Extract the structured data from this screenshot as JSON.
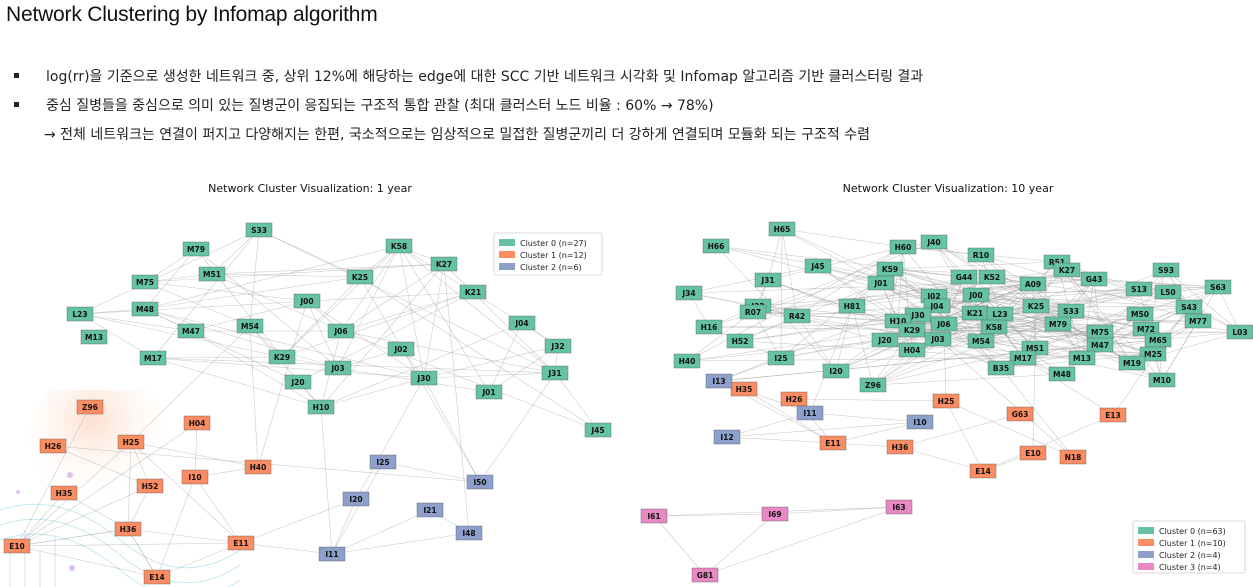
{
  "header": {
    "title": "Network Clustering by Infomap algorithm",
    "bullets": [
      "log(rr)을 기준으로 생성한 네트워크 중, 상위 12%에 해당하는 edge에 대한 SCC 기반 네트워크 시각화 및 Infomap 알고리즘 기반 클러스터링 결과",
      "중심 질병들을 중심으로 의미 있는 질병군이 응집되는 구조적 통합 관찰 (최대 클러스터 노드 비율 : 60% → 78%)"
    ],
    "conclusion": "→  전체 네트워크는 연결이 퍼지고 다양해지는 한편, 국소적으로는 임상적으로 밀접한 질병군끼리 더 강하게 연결되며 모듈화 되는 구조적 수렴"
  },
  "chart_data": [
    {
      "type": "network",
      "title": "Network Cluster Visualization: 1 year",
      "legend_position": "top-right",
      "clusters": [
        {
          "label": "Cluster 0 (n=27)",
          "color": "#66c2a5"
        },
        {
          "label": "Cluster 1 (n=12)",
          "color": "#fc8d62"
        },
        {
          "label": "Cluster 2 (n=6)",
          "color": "#8da0cb"
        }
      ],
      "nodes": [
        {
          "id": "S33",
          "c": 0
        },
        {
          "id": "M79",
          "c": 0
        },
        {
          "id": "K58",
          "c": 0
        },
        {
          "id": "M51",
          "c": 0
        },
        {
          "id": "K27",
          "c": 0
        },
        {
          "id": "M75",
          "c": 0
        },
        {
          "id": "K25",
          "c": 0
        },
        {
          "id": "K21",
          "c": 0
        },
        {
          "id": "M48",
          "c": 0
        },
        {
          "id": "J00",
          "c": 0
        },
        {
          "id": "L23",
          "c": 0
        },
        {
          "id": "J04",
          "c": 0
        },
        {
          "id": "M13",
          "c": 0
        },
        {
          "id": "M47",
          "c": 0
        },
        {
          "id": "M54",
          "c": 0
        },
        {
          "id": "J06",
          "c": 0
        },
        {
          "id": "J32",
          "c": 0
        },
        {
          "id": "M17",
          "c": 0
        },
        {
          "id": "K29",
          "c": 0
        },
        {
          "id": "J02",
          "c": 0
        },
        {
          "id": "J03",
          "c": 0
        },
        {
          "id": "J31",
          "c": 0
        },
        {
          "id": "J20",
          "c": 0
        },
        {
          "id": "J30",
          "c": 0
        },
        {
          "id": "J01",
          "c": 0
        },
        {
          "id": "H10",
          "c": 0
        },
        {
          "id": "J45",
          "c": 0
        },
        {
          "id": "Z96",
          "c": 1
        },
        {
          "id": "H04",
          "c": 1
        },
        {
          "id": "H26",
          "c": 1
        },
        {
          "id": "H25",
          "c": 1
        },
        {
          "id": "H40",
          "c": 1
        },
        {
          "id": "I10",
          "c": 1
        },
        {
          "id": "H52",
          "c": 1
        },
        {
          "id": "H35",
          "c": 1
        },
        {
          "id": "H36",
          "c": 1
        },
        {
          "id": "E11",
          "c": 1
        },
        {
          "id": "E10",
          "c": 1
        },
        {
          "id": "E14",
          "c": 1
        },
        {
          "id": "I25",
          "c": 2
        },
        {
          "id": "I50",
          "c": 2
        },
        {
          "id": "I20",
          "c": 2
        },
        {
          "id": "I21",
          "c": 2
        },
        {
          "id": "I48",
          "c": 2
        },
        {
          "id": "I11",
          "c": 2
        }
      ]
    },
    {
      "type": "network",
      "title": "Network Cluster Visualization: 10 year",
      "legend_position": "bottom-right",
      "clusters": [
        {
          "label": "Cluster 0 (n=63)",
          "color": "#66c2a5"
        },
        {
          "label": "Cluster 1 (n=10)",
          "color": "#fc8d62"
        },
        {
          "label": "Cluster 2 (n=4)",
          "color": "#8da0cb"
        },
        {
          "label": "Cluster 3 (n=4)",
          "color": "#e78ac3"
        }
      ],
      "nodes": [
        {
          "id": "H65",
          "c": 0
        },
        {
          "id": "H66",
          "c": 0
        },
        {
          "id": "J40",
          "c": 0
        },
        {
          "id": "H60",
          "c": 0
        },
        {
          "id": "R10",
          "c": 0
        },
        {
          "id": "J45",
          "c": 0
        },
        {
          "id": "K59",
          "c": 0
        },
        {
          "id": "R51",
          "c": 0
        },
        {
          "id": "J31",
          "c": 0
        },
        {
          "id": "G44",
          "c": 0
        },
        {
          "id": "K52",
          "c": 0
        },
        {
          "id": "K27",
          "c": 0
        },
        {
          "id": "S93",
          "c": 0
        },
        {
          "id": "J01",
          "c": 0
        },
        {
          "id": "A09",
          "c": 0
        },
        {
          "id": "G43",
          "c": 0
        },
        {
          "id": "J34",
          "c": 0
        },
        {
          "id": "J02",
          "c": 0
        },
        {
          "id": "J00",
          "c": 0
        },
        {
          "id": "S13",
          "c": 0
        },
        {
          "id": "L50",
          "c": 0
        },
        {
          "id": "S63",
          "c": 0
        },
        {
          "id": "J32",
          "c": 0
        },
        {
          "id": "R07",
          "c": 0
        },
        {
          "id": "H81",
          "c": 0
        },
        {
          "id": "J04",
          "c": 0
        },
        {
          "id": "K25",
          "c": 0
        },
        {
          "id": "S43",
          "c": 0
        },
        {
          "id": "R42",
          "c": 0
        },
        {
          "id": "J30",
          "c": 0
        },
        {
          "id": "K21",
          "c": 0
        },
        {
          "id": "L23",
          "c": 0
        },
        {
          "id": "S33",
          "c": 0
        },
        {
          "id": "M50",
          "c": 0
        },
        {
          "id": "H16",
          "c": 0
        },
        {
          "id": "H10",
          "c": 0
        },
        {
          "id": "J06",
          "c": 0
        },
        {
          "id": "K58",
          "c": 0
        },
        {
          "id": "M79",
          "c": 0
        },
        {
          "id": "M77",
          "c": 0
        },
        {
          "id": "K29",
          "c": 0
        },
        {
          "id": "M72",
          "c": 0
        },
        {
          "id": "L03",
          "c": 0
        },
        {
          "id": "H52",
          "c": 0
        },
        {
          "id": "J20",
          "c": 0
        },
        {
          "id": "J03",
          "c": 0
        },
        {
          "id": "M54",
          "c": 0
        },
        {
          "id": "M75",
          "c": 0
        },
        {
          "id": "M65",
          "c": 0
        },
        {
          "id": "H04",
          "c": 0
        },
        {
          "id": "M47",
          "c": 0
        },
        {
          "id": "I25",
          "c": 0
        },
        {
          "id": "M51",
          "c": 0
        },
        {
          "id": "M17",
          "c": 0
        },
        {
          "id": "M25",
          "c": 0
        },
        {
          "id": "H40",
          "c": 0
        },
        {
          "id": "M13",
          "c": 0
        },
        {
          "id": "M19",
          "c": 0
        },
        {
          "id": "B35",
          "c": 0
        },
        {
          "id": "I20",
          "c": 0
        },
        {
          "id": "M48",
          "c": 0
        },
        {
          "id": "Z96",
          "c": 0
        },
        {
          "id": "M10",
          "c": 0
        },
        {
          "id": "H35",
          "c": 1
        },
        {
          "id": "H26",
          "c": 1
        },
        {
          "id": "H25",
          "c": 1
        },
        {
          "id": "G63",
          "c": 1
        },
        {
          "id": "E13",
          "c": 1
        },
        {
          "id": "E11",
          "c": 1
        },
        {
          "id": "H36",
          "c": 1
        },
        {
          "id": "E10",
          "c": 1
        },
        {
          "id": "N18",
          "c": 1
        },
        {
          "id": "E14",
          "c": 1
        },
        {
          "id": "I13",
          "c": 2
        },
        {
          "id": "I11",
          "c": 2
        },
        {
          "id": "I10",
          "c": 2
        },
        {
          "id": "I12",
          "c": 2
        },
        {
          "id": "I61",
          "c": 3
        },
        {
          "id": "I69",
          "c": 3
        },
        {
          "id": "I63",
          "c": 3
        },
        {
          "id": "G81",
          "c": 3
        }
      ]
    }
  ]
}
